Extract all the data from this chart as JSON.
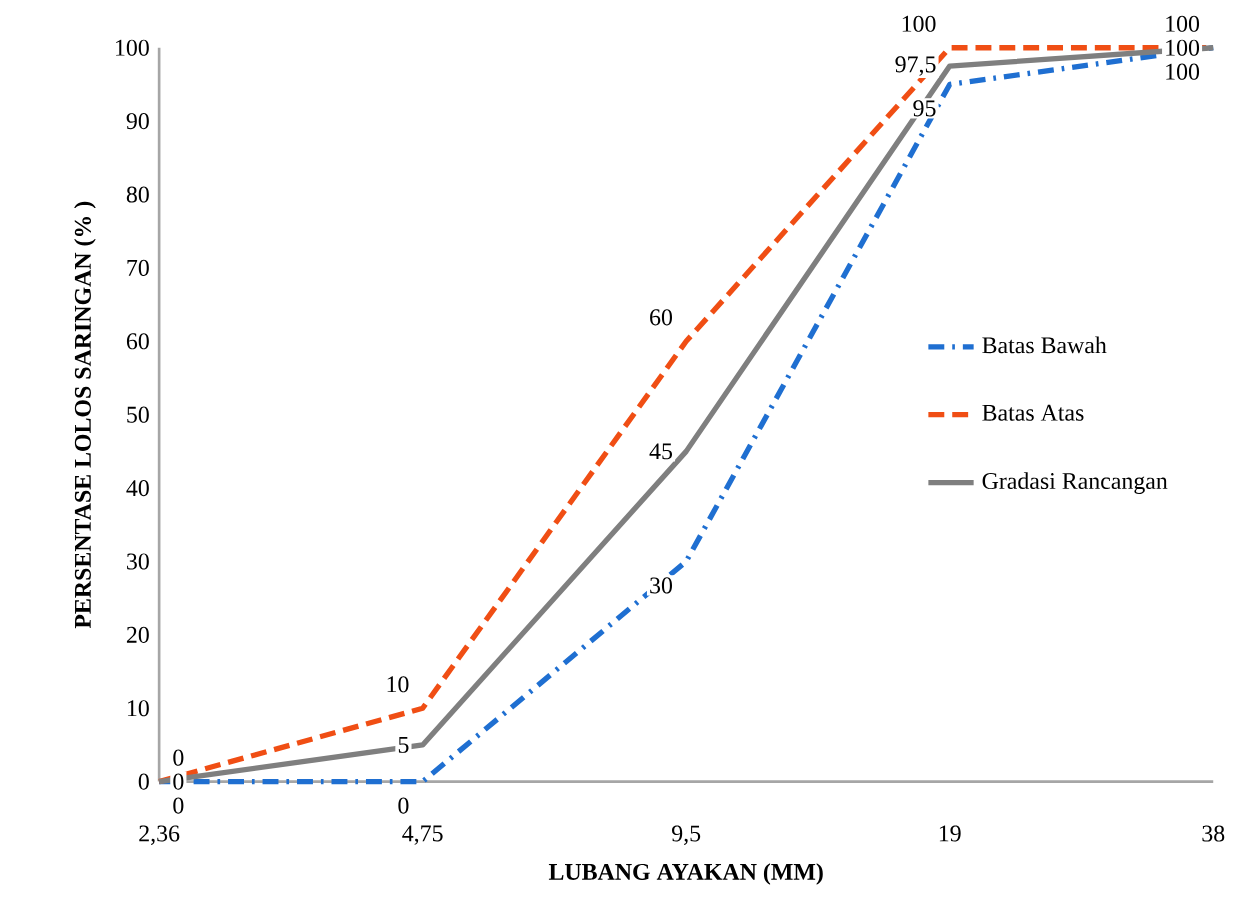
{
  "chart_data": {
    "type": "line",
    "xlabel": "LUBANG AYAKAN  (MM)",
    "ylabel": "PERSENTASE  LOLOS SARINGAN (% )",
    "categories": [
      "2,36",
      "4,75",
      "9,5",
      "19",
      "38"
    ],
    "ylim": [
      0,
      100
    ],
    "yticks": [
      0,
      10,
      20,
      30,
      40,
      50,
      60,
      70,
      80,
      90,
      100
    ],
    "legend": "right",
    "marker": "none",
    "series": [
      {
        "name": "Batas Bawah",
        "color": "#1f6fd1",
        "line_style": "dashdot",
        "values": [
          0,
          0,
          30,
          95,
          100
        ],
        "value_labels": [
          "0",
          "0",
          "30",
          "95",
          "100"
        ]
      },
      {
        "name": "Batas Atas",
        "color": "#f04e14",
        "line_style": "dashed",
        "values": [
          0,
          10,
          60,
          100,
          100
        ],
        "value_labels": [
          "0",
          "10",
          "60",
          "100",
          "100"
        ]
      },
      {
        "name": "Gradasi Rancangan",
        "color": "#7f7f7f",
        "line_style": "solid",
        "values": [
          0,
          5,
          45,
          97.5,
          100
        ],
        "value_labels": [
          "0",
          "5",
          "45",
          "97,5",
          "100"
        ]
      }
    ]
  }
}
